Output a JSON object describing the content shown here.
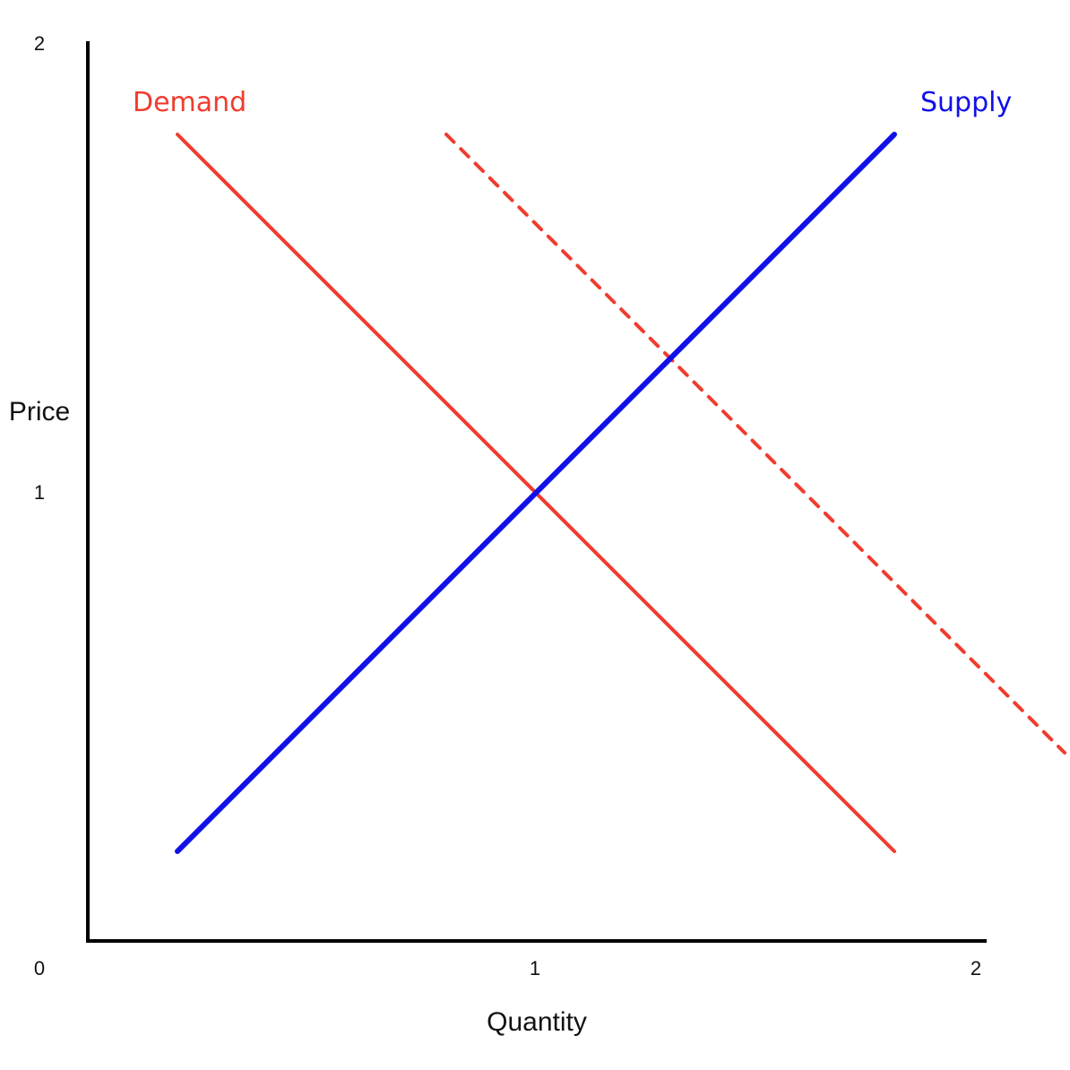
{
  "chart_data": {
    "type": "line",
    "xlabel": "Quantity",
    "ylabel": "Price",
    "xlim": [
      0,
      2
    ],
    "ylim": [
      0,
      2
    ],
    "x_ticks": [
      "0",
      "1",
      "2"
    ],
    "y_ticks": [
      "0",
      "1",
      "2"
    ],
    "grid": false,
    "series": [
      {
        "name": "Demand",
        "color": "#f03c2e",
        "style": "solid",
        "points": [
          [
            0.2,
            1.8
          ],
          [
            1.8,
            0.2
          ]
        ]
      },
      {
        "name": "",
        "color": "#f03c2e",
        "style": "dashed",
        "points": [
          [
            0.8,
            1.8
          ],
          [
            2.18,
            0.42
          ]
        ]
      },
      {
        "name": "Supply",
        "color": "#1010e8",
        "style": "solid",
        "points": [
          [
            0.2,
            0.2
          ],
          [
            1.8,
            1.8
          ]
        ]
      }
    ]
  }
}
